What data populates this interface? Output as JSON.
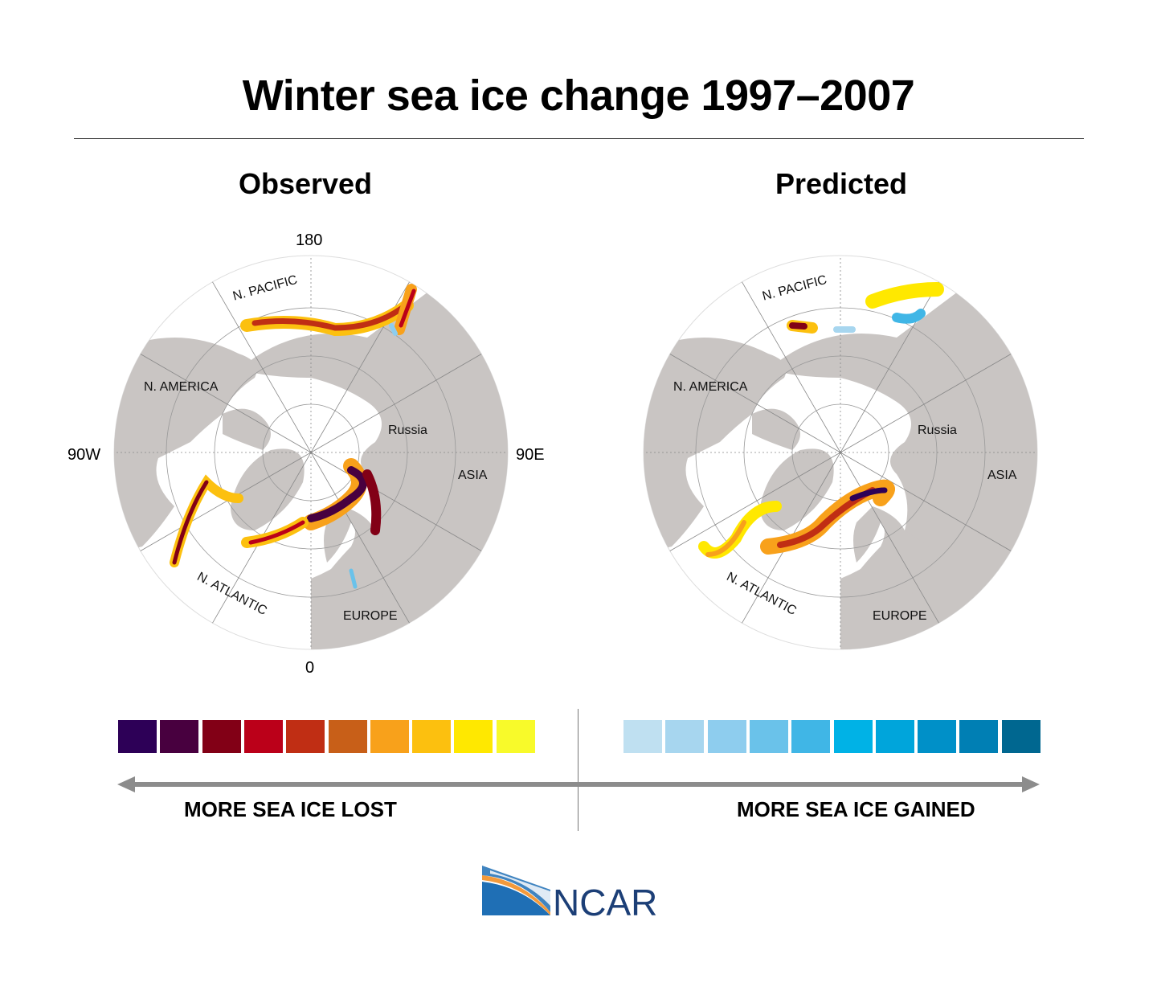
{
  "title": "Winter sea ice change 1997–2007",
  "maps": [
    {
      "subtitle": "Observed",
      "axis": {
        "top": "180",
        "bottom": "0",
        "left": "90W",
        "right": "90E"
      },
      "labels": {
        "pacific": "N. PACIFIC",
        "america": "N. AMERICA",
        "russia": "Russia",
        "asia": "ASIA",
        "atlantic": "N. ATLANTIC",
        "europe": "EUROPE"
      }
    },
    {
      "subtitle": "Predicted",
      "labels": {
        "pacific": "N. PACIFIC",
        "america": "N. AMERICA",
        "russia": "Russia",
        "asia": "ASIA",
        "atlantic": "N. ATLANTIC",
        "europe": "EUROPE"
      }
    }
  ],
  "legend": {
    "loss_colors": [
      "#2d0057",
      "#48003f",
      "#820016",
      "#bb0019",
      "#c02e14",
      "#c85f18",
      "#f8a11b",
      "#fcc00f",
      "#ffe800",
      "#f8fa2a"
    ],
    "gain_colors": [
      "#bfe0f1",
      "#a7d6ef",
      "#8ecdee",
      "#6ac2ea",
      "#40b6e6",
      "#00b2e6",
      "#00a5db",
      "#0090c8",
      "#007fb4",
      "#006790"
    ],
    "loss_label": "MORE SEA ICE LOST",
    "gain_label": "MORE SEA ICE GAINED"
  },
  "logo": {
    "text": "NCAR",
    "colors": {
      "blue": "#1f6fb5",
      "navy": "#1c3f77",
      "orange": "#f39a3b"
    }
  }
}
